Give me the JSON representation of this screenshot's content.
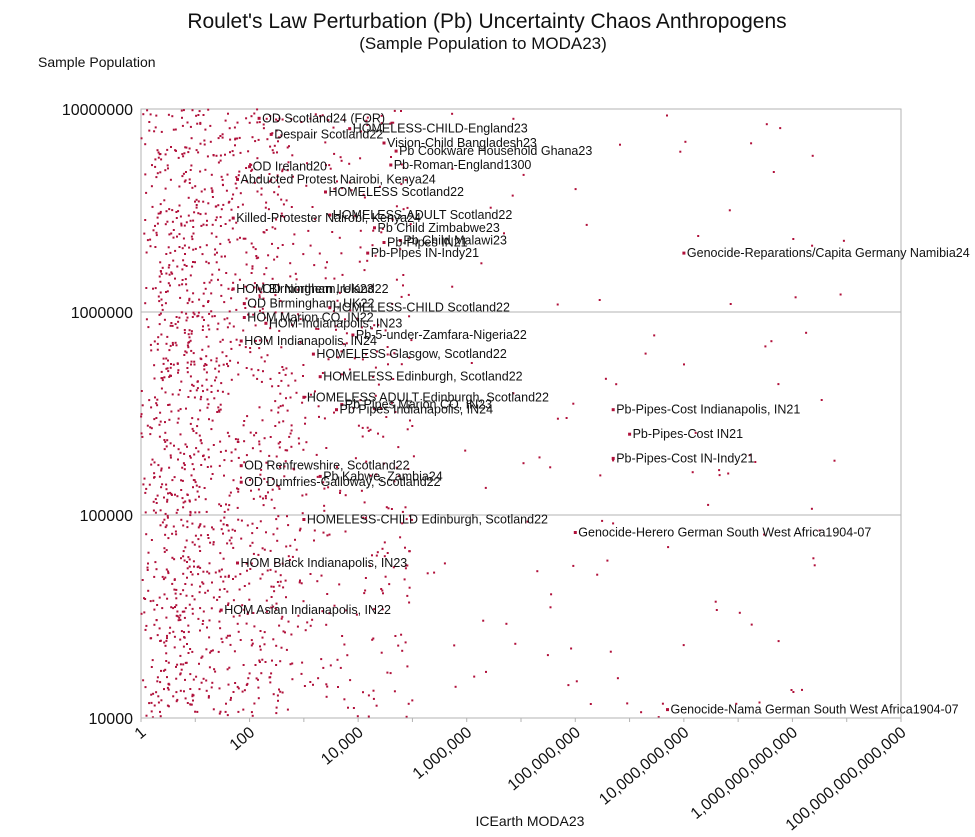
{
  "chart_data": {
    "type": "scatter",
    "title": "Roulet's Law Perturbation (Pb) Uncertainty Chaos Anthropogens",
    "subtitle": "(Sample Population to MODA23)",
    "xlabel": "ICEarth MODA23",
    "ylabel": "Sample Population",
    "x_scale": "log",
    "y_scale": "log",
    "xlim": [
      1,
      100000000000000.0
    ],
    "ylim": [
      10000,
      10000000
    ],
    "grid": "horizontal",
    "legend": "none",
    "point_color": "#b0103a",
    "x_tick_labels": [
      "1",
      "100",
      "10,000",
      "1,000,000",
      "100,000,000",
      "10,000,000,000",
      "1,000,000,000,000",
      "100,000,000,000,000"
    ],
    "y_tick_labels": [
      "10000",
      "100000",
      "1000000",
      "10000000"
    ],
    "labeled_points": [
      {
        "label": "OD Scotland24 (FOR)",
        "x": 150,
        "y": 9000000
      },
      {
        "label": "Despair Scotland22",
        "x": 250,
        "y": 7500000
      },
      {
        "label": "HOMELESS-CHILD-England23",
        "x": 7000,
        "y": 8000000
      },
      {
        "label": "Vision-Child Bangladesh23",
        "x": 30000,
        "y": 6800000
      },
      {
        "label": "Pb Cookware Household Ghana23",
        "x": 50000,
        "y": 6200000
      },
      {
        "label": "Pb-Roman-England1300",
        "x": 40000,
        "y": 5300000
      },
      {
        "label": "OD Ireland20",
        "x": 100,
        "y": 5200000
      },
      {
        "label": "Abducted Protest Nairobi, Kenya24",
        "x": 60,
        "y": 4500000
      },
      {
        "label": "HOMELESS Scotland22",
        "x": 2500,
        "y": 3900000
      },
      {
        "label": "HOMELESS-ADULT Scotland22",
        "x": 3000,
        "y": 3000000
      },
      {
        "label": "Killed-Protester Nairobi, Kenya24",
        "x": 50,
        "y": 2900000
      },
      {
        "label": "Pb Child Zimbabwe23",
        "x": 20000,
        "y": 2600000
      },
      {
        "label": "Pb Child Malawi23",
        "x": 60000,
        "y": 2250000
      },
      {
        "label": "Pb-Pipes IN21",
        "x": 30000,
        "y": 2200000
      },
      {
        "label": "Pb-Pipes IN-Indy21",
        "x": 15000,
        "y": 1950000
      },
      {
        "label": "Genocide-Reparations/Capita Germany Namibia24",
        "x": 10000000000.0,
        "y": 1950000
      },
      {
        "label": "OD Northern Ireland22",
        "x": 150,
        "y": 1300000
      },
      {
        "label": "HOM Birmingham, UK23",
        "x": 50,
        "y": 1300000
      },
      {
        "label": "OD Birmingham, UK22",
        "x": 80,
        "y": 1100000
      },
      {
        "label": "HOMELESS-CHILD Scotland22",
        "x": 3000,
        "y": 1050000
      },
      {
        "label": "HOM Marion CO, IN22",
        "x": 80,
        "y": 940000
      },
      {
        "label": "HOM-Indianapolis, IN23",
        "x": 200,
        "y": 880000
      },
      {
        "label": "Pb-5-under-Zamfara-Nigeria22",
        "x": 8000,
        "y": 770000
      },
      {
        "label": "HOM Indianapolis, IN24",
        "x": 70,
        "y": 720000
      },
      {
        "label": "HOMELESS Glasgow, Scotland22",
        "x": 1500,
        "y": 620000
      },
      {
        "label": "HOMELESS Edinburgh, Scotland22",
        "x": 2000,
        "y": 480000
      },
      {
        "label": "HOMELESS ADULT Edinburgh, Scotland22",
        "x": 1000,
        "y": 380000
      },
      {
        "label": "Pb Pipes Marion CO, IN23",
        "x": 5000,
        "y": 350000
      },
      {
        "label": "Pb Pipes Indianapolis, IN24",
        "x": 4000,
        "y": 330000
      },
      {
        "label": "Pb-Pipes-Cost Indianapolis, IN21",
        "x": 500000000.0,
        "y": 330000
      },
      {
        "label": "Pb-Pipes-Cost IN21",
        "x": 1000000000.0,
        "y": 250000
      },
      {
        "label": "Pb-Pipes-Cost IN-Indy21",
        "x": 500000000.0,
        "y": 190000
      },
      {
        "label": "OD Renfrewshire, Scotland22",
        "x": 70,
        "y": 175000
      },
      {
        "label": "Pb Kabwe, Zambia24",
        "x": 2000,
        "y": 155000
      },
      {
        "label": "OD Dumfries-Galloway, Scotland22",
        "x": 70,
        "y": 145000
      },
      {
        "label": "HOMELESS-CHILD Edinburgh, Scotland22",
        "x": 1000,
        "y": 95000
      },
      {
        "label": "Genocide-Herero German South West Africa1904-07",
        "x": 100000000.0,
        "y": 82000
      },
      {
        "label": "HOM Black Indianapolis, IN23",
        "x": 60,
        "y": 58000
      },
      {
        "label": "HOM Asian Indianapolis, IN22",
        "x": 30,
        "y": 34000
      },
      {
        "label": "Genocide-Nama German South West Africa1904-07",
        "x": 5000000000.0,
        "y": 11000
      }
    ]
  }
}
